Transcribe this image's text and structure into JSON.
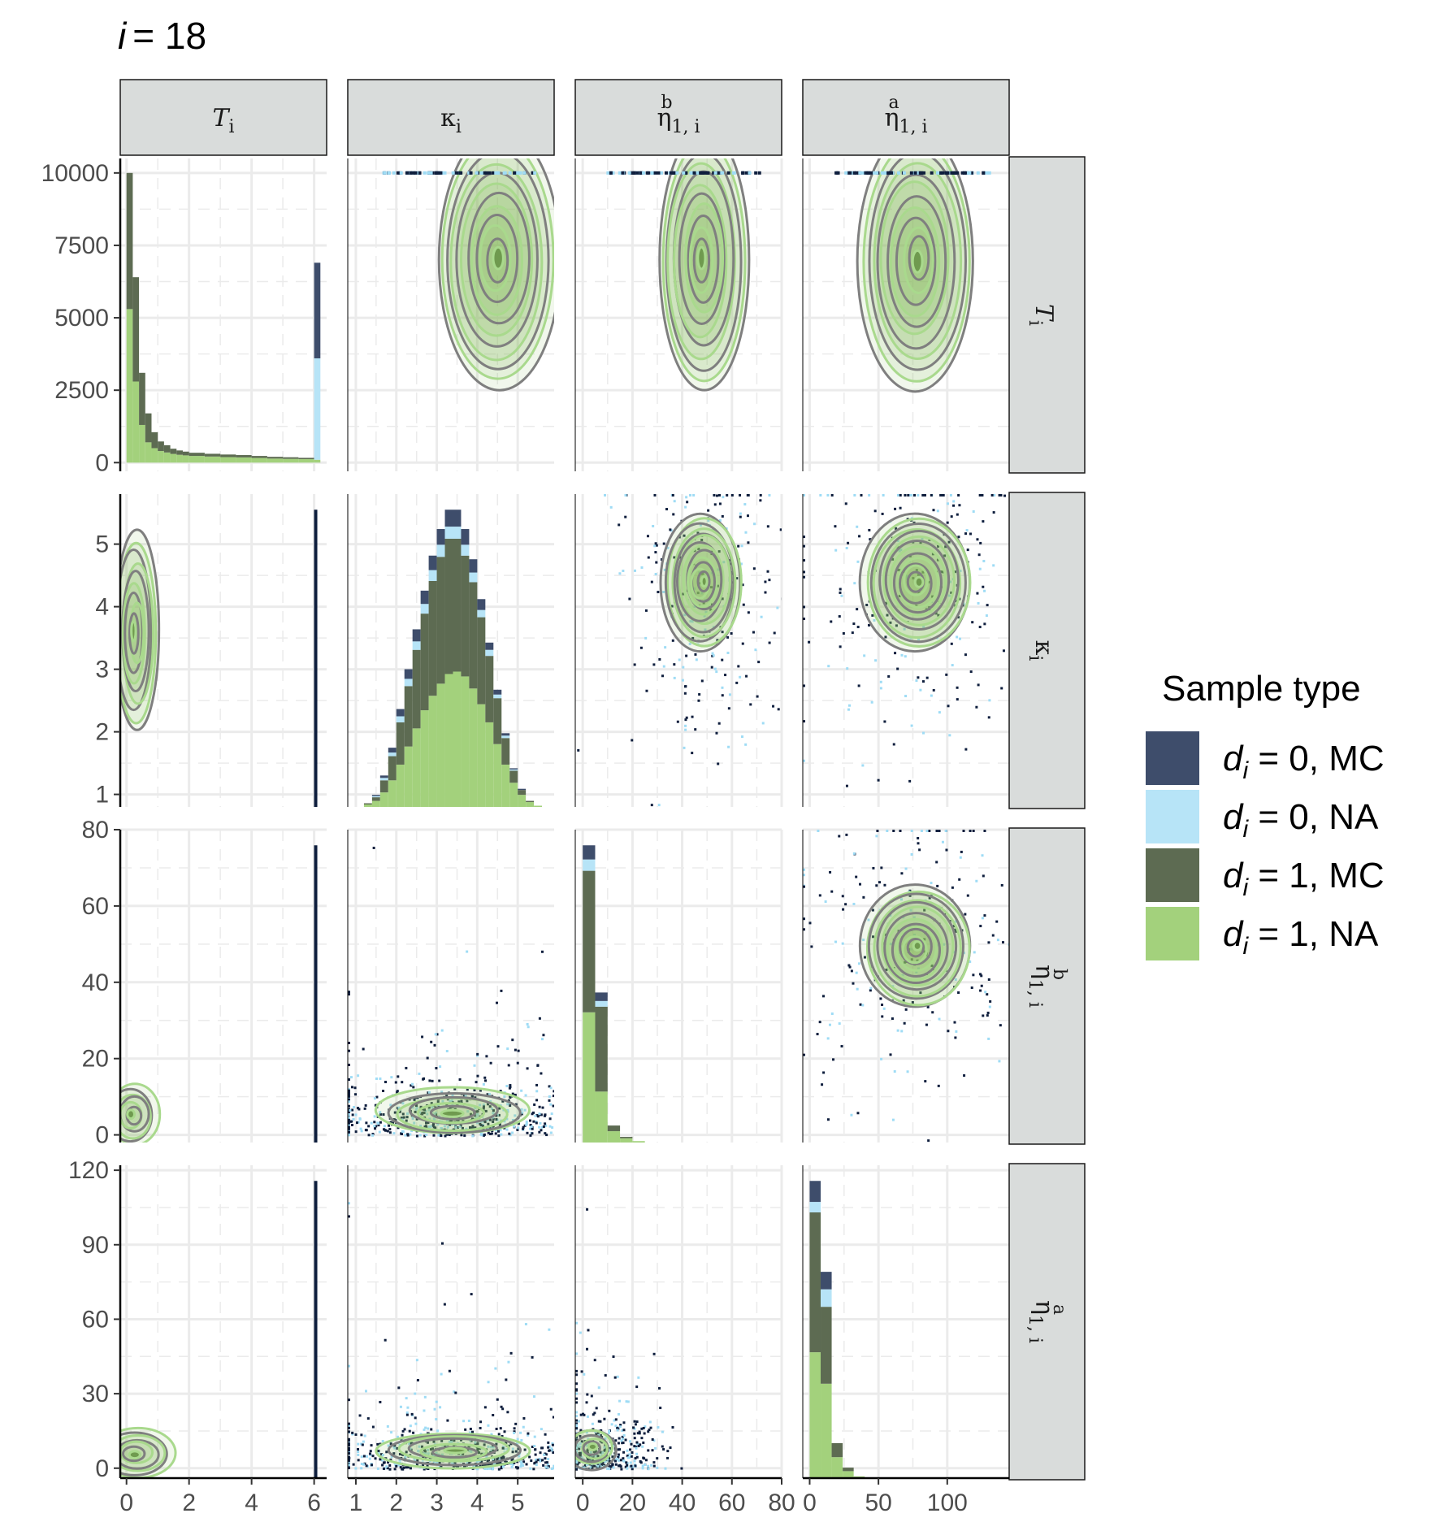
{
  "chart_data": {
    "type": "pairs-matrix",
    "title": {
      "var": "i",
      "eq": "= 18"
    },
    "variables": [
      {
        "key": "T",
        "label": "T",
        "sub": "i",
        "italic": true,
        "sup": ""
      },
      {
        "key": "kappa",
        "label": "κ",
        "sub": "i",
        "italic": false,
        "sup": ""
      },
      {
        "key": "eta_b",
        "label": "η",
        "sub": "1, i",
        "italic": false,
        "sup": "b"
      },
      {
        "key": "eta_a",
        "label": "η",
        "sub": "1, i",
        "italic": false,
        "sup": "a"
      }
    ],
    "x_axes": [
      {
        "range": [
          -0.2,
          6.4
        ],
        "ticks": [
          0,
          2,
          4,
          6
        ]
      },
      {
        "range": [
          0.8,
          5.9
        ],
        "ticks": [
          1,
          2,
          3,
          4,
          5
        ]
      },
      {
        "range": [
          -3,
          80
        ],
        "ticks": [
          0,
          20,
          40,
          60,
          80
        ]
      },
      {
        "range": [
          -5,
          145
        ],
        "ticks": [
          0,
          50,
          100
        ]
      }
    ],
    "y_axes": [
      {
        "range": [
          -300,
          10500
        ],
        "ticks": [
          0,
          2500,
          5000,
          7500,
          10000
        ]
      },
      {
        "range": [
          0.8,
          5.8
        ],
        "ticks": [
          1,
          2,
          3,
          4,
          5
        ]
      },
      {
        "range": [
          -2,
          80
        ],
        "ticks": [
          0,
          20,
          40,
          60,
          80
        ]
      },
      {
        "range": [
          -4,
          122
        ],
        "ticks": [
          0,
          30,
          60,
          90,
          120
        ]
      }
    ],
    "legend": {
      "title": "Sample type",
      "position": "right",
      "entries": [
        {
          "var": "d",
          "sub": "i",
          "text": " = 0, MC",
          "color": "#3e4d6b"
        },
        {
          "var": "d",
          "sub": "i",
          "text": " = 0, NA",
          "color": "#b7e4f7"
        },
        {
          "var": "d",
          "sub": "i",
          "text": " = 1, MC",
          "color": "#5d6b52"
        },
        {
          "var": "d",
          "sub": "i",
          "text": " = 1, NA",
          "color": "#a3d17c"
        }
      ]
    },
    "diagonal_histograms": {
      "T": {
        "bin_edges": [
          0,
          0.2,
          0.4,
          0.6,
          0.8,
          1.0,
          1.2,
          1.4,
          1.6,
          1.8,
          2.0,
          2.5,
          3.0,
          3.5,
          4.0,
          4.5,
          5.0,
          5.5,
          6.0,
          6.2
        ],
        "d0_MC": [
          0,
          0,
          0,
          0,
          0,
          0,
          0,
          0,
          0,
          0,
          0,
          0,
          0,
          0,
          0,
          0,
          0,
          0,
          3300
        ],
        "d0_NA": [
          0,
          0,
          0,
          0,
          0,
          0,
          0,
          0,
          0,
          0,
          0,
          0,
          0,
          0,
          0,
          0,
          0,
          0,
          3500
        ],
        "d1_MC": [
          4700,
          3600,
          1800,
          1000,
          550,
          330,
          250,
          180,
          150,
          130,
          110,
          95,
          90,
          80,
          70,
          60,
          55,
          45,
          0
        ],
        "d1_NA": [
          5300,
          2800,
          1300,
          700,
          500,
          400,
          350,
          300,
          270,
          250,
          230,
          210,
          190,
          180,
          160,
          140,
          130,
          120,
          100
        ]
      },
      "kappa": {
        "bin_edges": [
          1.2,
          1.4,
          1.6,
          1.8,
          2.0,
          2.2,
          2.4,
          2.6,
          2.8,
          3.0,
          3.2,
          3.4,
          3.6,
          3.8,
          4.0,
          4.2,
          4.4,
          4.6,
          4.8,
          5.0,
          5.2,
          5.4,
          5.6
        ],
        "d0_MC": [
          0.0,
          0.01,
          0.02,
          0.04,
          0.06,
          0.08,
          0.1,
          0.11,
          0.12,
          0.13,
          0.14,
          0.14,
          0.13,
          0.11,
          0.09,
          0.06,
          0.04,
          0.02,
          0.01,
          0.01,
          0.0,
          0.0
        ],
        "d0_NA": [
          0.0,
          0.01,
          0.02,
          0.03,
          0.05,
          0.06,
          0.07,
          0.08,
          0.09,
          0.1,
          0.1,
          0.1,
          0.09,
          0.08,
          0.06,
          0.05,
          0.03,
          0.02,
          0.01,
          0.0,
          0.0,
          0.0
        ],
        "d1_MC": [
          0.01,
          0.03,
          0.1,
          0.2,
          0.35,
          0.5,
          0.65,
          0.8,
          0.95,
          1.05,
          1.12,
          1.1,
          1.0,
          0.88,
          0.72,
          0.55,
          0.38,
          0.22,
          0.1,
          0.04,
          0.01,
          0.0
        ],
        "d1_NA": [
          0.02,
          0.05,
          0.12,
          0.22,
          0.35,
          0.5,
          0.65,
          0.8,
          0.92,
          1.02,
          1.1,
          1.12,
          1.08,
          0.98,
          0.85,
          0.7,
          0.52,
          0.35,
          0.2,
          0.1,
          0.04,
          0.01
        ]
      },
      "eta_b": {
        "bin_edges": [
          0,
          5,
          10,
          15,
          20,
          25
        ],
        "d0_MC": [
          0.05,
          0.03,
          0.0,
          0.0,
          0.0
        ],
        "d0_NA": [
          0.04,
          0.02,
          0.0,
          0.0,
          0.0
        ],
        "d1_MC": [
          0.5,
          0.3,
          0.02,
          0.005,
          0.0
        ],
        "d1_NA": [
          0.46,
          0.18,
          0.04,
          0.015,
          0.005
        ]
      },
      "eta_a": {
        "bin_edges": [
          0,
          8,
          16,
          24,
          32,
          40
        ],
        "d0_MC": [
          0.06,
          0.05,
          0.0,
          0.0,
          0.0
        ],
        "d0_NA": [
          0.03,
          0.05,
          0.0,
          0.0,
          0.0
        ],
        "d1_MC": [
          0.4,
          0.22,
          0.04,
          0.01,
          0.0
        ],
        "d1_NA": [
          0.36,
          0.27,
          0.06,
          0.02,
          0.005
        ]
      }
    },
    "density_panels": {
      "eta_b|kappa": {
        "center": [
          48,
          4.4
        ],
        "spread": [
          16,
          1.1
        ]
      },
      "eta_a|kappa": {
        "center": [
          78,
          4.4
        ],
        "spread": [
          40,
          1.1
        ]
      },
      "eta_a|eta_b": {
        "center": [
          78,
          49
        ],
        "spread": [
          40,
          16
        ]
      },
      "kappa|T": {
        "center": [
          4.5,
          7000
        ],
        "spread": [
          1.5,
          4500
        ]
      },
      "eta_b|T": {
        "center": [
          48,
          7000
        ],
        "spread": [
          18,
          4500
        ]
      },
      "eta_a|T": {
        "center": [
          78,
          7000
        ],
        "spread": [
          42,
          4500
        ]
      },
      "T|kappa": {
        "center": [
          0.3,
          3.6
        ],
        "spread": [
          0.7,
          1.6
        ]
      },
      "T|eta_b": {
        "center": [
          0.2,
          5
        ],
        "spread": [
          0.8,
          8
        ]
      },
      "T|eta_a": {
        "center": [
          0.3,
          6
        ],
        "spread": [
          1.2,
          10
        ]
      },
      "kappa|eta_b": {
        "center": [
          3.5,
          6
        ],
        "spread": [
          1.8,
          10
        ]
      },
      "kappa|eta_a": {
        "center": [
          3.5,
          6
        ],
        "spread": [
          1.8,
          12
        ]
      },
      "eta_b|eta_a": {
        "center": [
          5,
          8
        ],
        "spread": [
          12,
          14
        ]
      }
    },
    "colors": {
      "d0_MC": "#3e4d6b",
      "d0_NA": "#b7e4f7",
      "d1_MC": "#5d6b52",
      "d1_NA": "#a3d17c",
      "contour_MC": "#7f7f7f",
      "contour_NA": "#a9d98d",
      "point_MC": "#0e1e3d",
      "point_NA": "#9fdcf5",
      "strip_bg": "#d9dcdb",
      "grid": "#ebebeb"
    }
  }
}
